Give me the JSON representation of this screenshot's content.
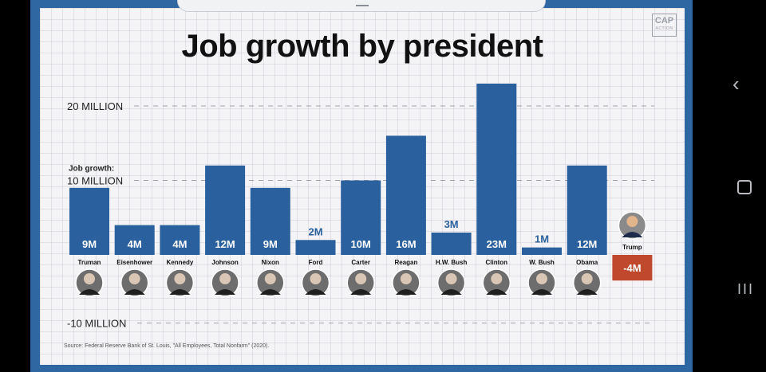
{
  "title": "Job growth by president",
  "brand": {
    "line1": "CAP",
    "line2": "ACTION"
  },
  "axis_labels": {
    "top": "20 MILLION",
    "mid_caption": "Job growth:",
    "mid": "10 MILLION",
    "bottom": "-10 MILLION"
  },
  "source": "Source: Federal Reserve Bank of St. Louis, \"All Employees, Total Nonfarm\" (2020).",
  "nav": {
    "back": "‹",
    "home": "",
    "recent": "III"
  },
  "colors": {
    "bar": "#2a609d",
    "negative": "#c0482d",
    "frame": "#2f67a3"
  },
  "chart_data": {
    "type": "bar",
    "title": "Job growth by president",
    "ylabel": "Job growth",
    "unit": "million jobs",
    "ylim": [
      -10,
      25
    ],
    "gridlines": [
      20,
      10,
      -10
    ],
    "categories": [
      "Truman",
      "Eisenhower",
      "Kennedy",
      "Johnson",
      "Nixon",
      "Ford",
      "Carter",
      "Reagan",
      "H.W. Bush",
      "Clinton",
      "W. Bush",
      "Obama",
      "Trump"
    ],
    "values": [
      9,
      4,
      4,
      12,
      9,
      2,
      10,
      16,
      3,
      23,
      1,
      12,
      -4
    ],
    "labels": [
      "9M",
      "4M",
      "4M",
      "12M",
      "9M",
      "2M",
      "10M",
      "16M",
      "3M",
      "23M",
      "1M",
      "12M",
      "-4M"
    ]
  }
}
